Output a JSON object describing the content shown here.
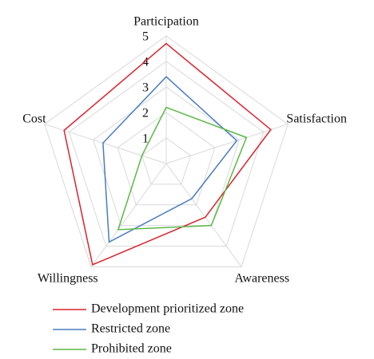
{
  "chart_data": {
    "type": "radar",
    "categories": [
      "Participation",
      "Satisfaction",
      "Awareness",
      "Willingness",
      "Cost"
    ],
    "series": [
      {
        "name": "Development prioritized zone",
        "color": "#d9232d",
        "values": [
          4.7,
          4.3,
          2.6,
          4.9,
          4.2
        ]
      },
      {
        "name": "Restricted zone",
        "color": "#4a7cc0",
        "values": [
          3.4,
          2.9,
          1.7,
          3.8,
          2.6
        ]
      },
      {
        "name": "Prohibited zone",
        "color": "#5cb847",
        "values": [
          2.2,
          3.3,
          3.0,
          3.2,
          1.0
        ]
      }
    ],
    "ylim": [
      0,
      5
    ],
    "yticks": [
      1,
      2,
      3,
      4,
      5
    ],
    "grid": true
  }
}
